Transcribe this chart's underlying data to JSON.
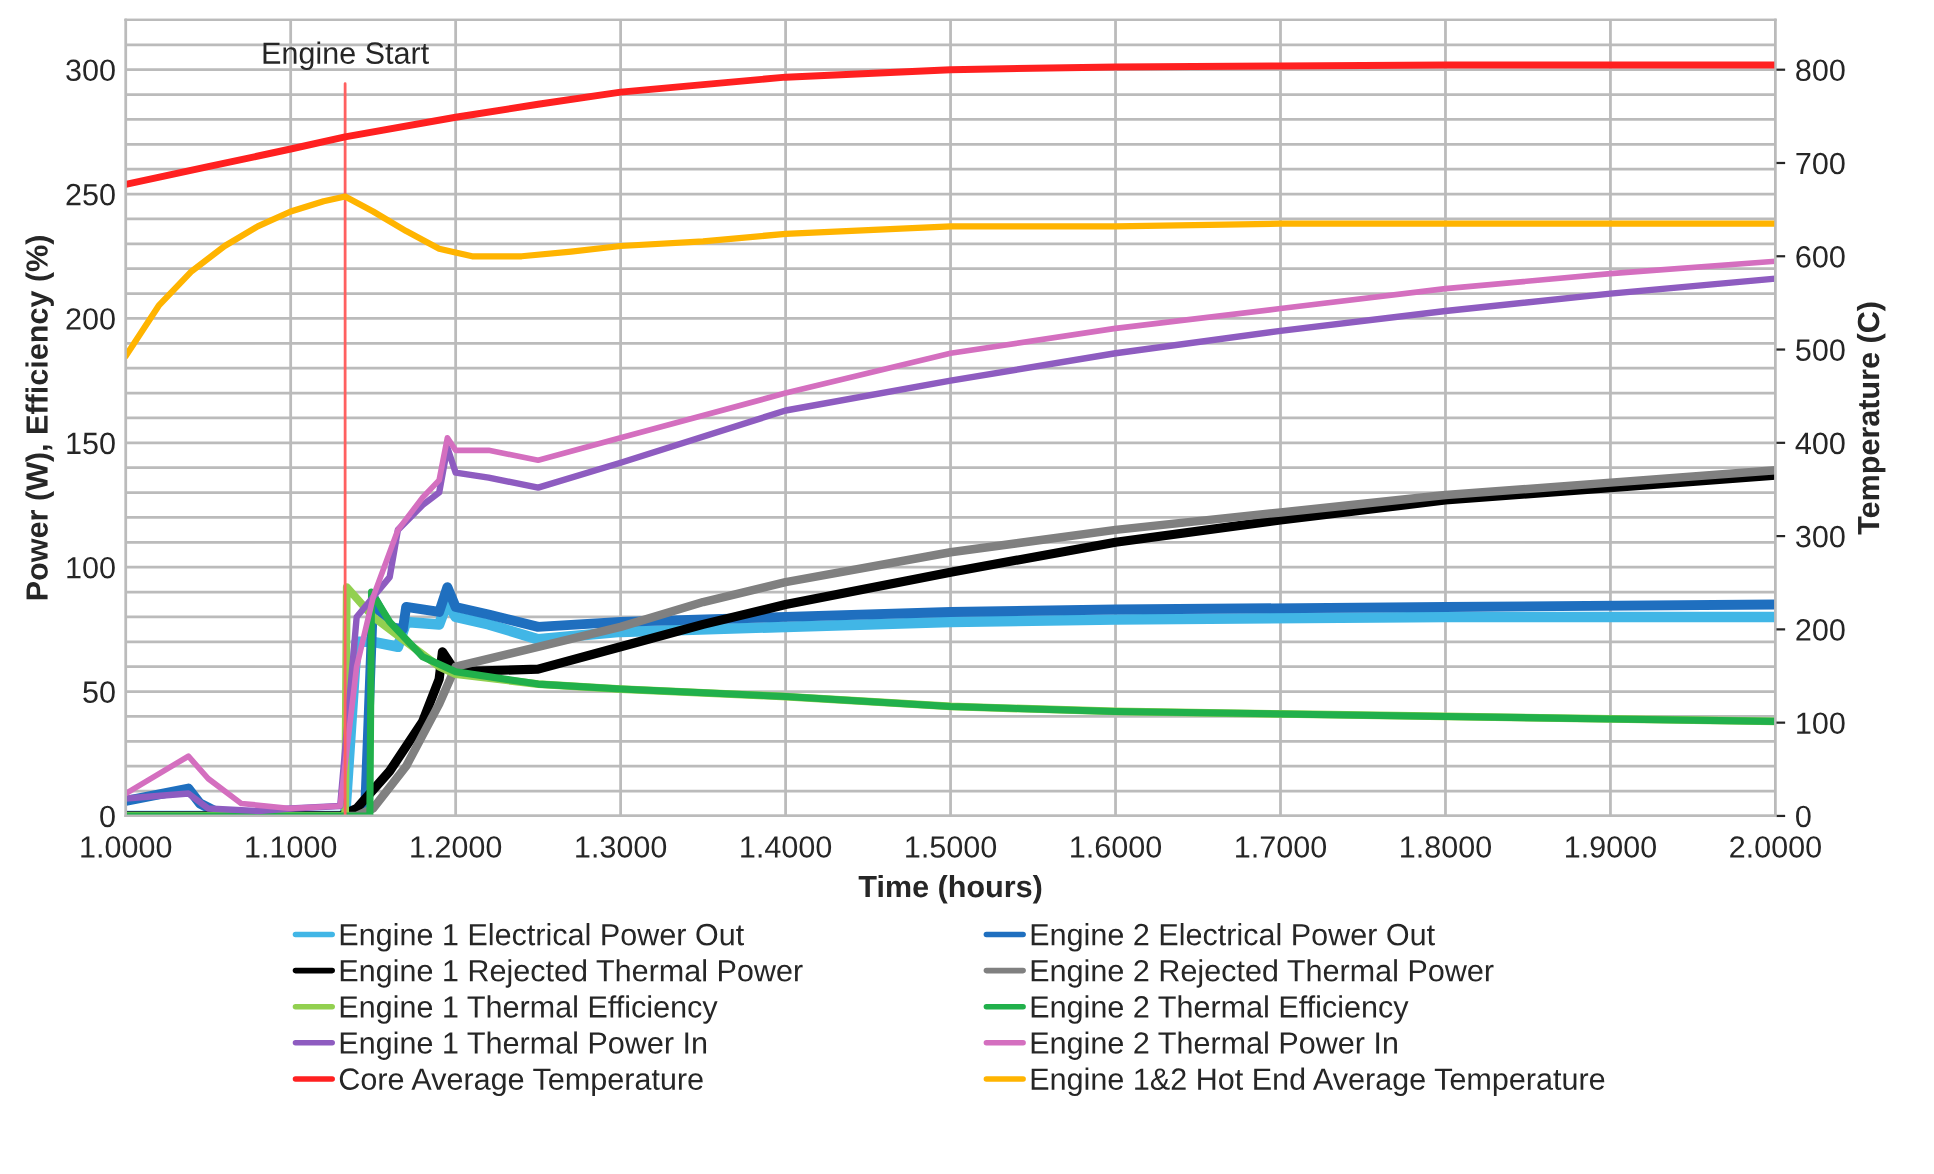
{
  "chart_data": {
    "type": "line",
    "xlabel": "Time (hours)",
    "ylabel": "Power (W), Efficiency (%)",
    "y2label": "Temperature (C)",
    "xlim": [
      1.0,
      2.0
    ],
    "xticks": [
      {
        "value": 1.0,
        "label": "1.0000"
      },
      {
        "value": 1.1,
        "label": "1.1000"
      },
      {
        "value": 1.2,
        "label": "1.2000"
      },
      {
        "value": 1.3,
        "label": "1.3000"
      },
      {
        "value": 1.4,
        "label": "1.4000"
      },
      {
        "value": 1.5,
        "label": "1.5000"
      },
      {
        "value": 1.6,
        "label": "1.6000"
      },
      {
        "value": 1.7,
        "label": "1.7000"
      },
      {
        "value": 1.8,
        "label": "1.8000"
      },
      {
        "value": 1.9,
        "label": "1.9000"
      },
      {
        "value": 2.0,
        "label": "2.0000"
      }
    ],
    "ylim": [
      0,
      320
    ],
    "yticks": [
      0,
      {
        "value": 10,
        "label": null
      },
      {
        "value": 20,
        "label": null
      },
      {
        "value": 30,
        "label": null
      },
      {
        "value": 40,
        "label": null
      },
      50,
      {
        "value": 60,
        "label": null
      },
      {
        "value": 70,
        "label": null
      },
      {
        "value": 80,
        "label": null
      },
      {
        "value": 90,
        "label": null
      },
      100,
      {
        "value": 110,
        "label": null
      },
      {
        "value": 120,
        "label": null
      },
      {
        "value": 130,
        "label": null
      },
      {
        "value": 140,
        "label": null
      },
      150,
      {
        "value": 160,
        "label": null
      },
      {
        "value": 170,
        "label": null
      },
      {
        "value": 180,
        "label": null
      },
      {
        "value": 190,
        "label": null
      },
      200,
      {
        "value": 210,
        "label": null
      },
      {
        "value": 220,
        "label": null
      },
      {
        "value": 230,
        "label": null
      },
      {
        "value": 240,
        "label": null
      },
      250,
      {
        "value": 260,
        "label": null
      },
      {
        "value": 270,
        "label": null
      },
      {
        "value": 280,
        "label": null
      },
      {
        "value": 290,
        "label": null
      },
      300,
      {
        "value": 310,
        "label": null
      }
    ],
    "y2lim": [
      0,
      853.33
    ],
    "y2ticks": [
      0,
      100,
      200,
      300,
      400,
      500,
      600,
      700,
      800
    ],
    "grid": true,
    "legend": "bottom",
    "marker": "none",
    "line_style": "solid",
    "ref_lines": [
      {
        "axis": "x",
        "value": 1.133,
        "label": "Engine Start",
        "color": "#ff6060"
      }
    ],
    "series": [
      {
        "name": "Engine 1 Electrical Power Out",
        "color": "#41b6e6",
        "x": [
          1.0,
          1.133,
          1.14,
          1.15,
          1.165,
          1.17,
          1.19,
          1.195,
          1.2,
          1.22,
          1.25,
          1.3,
          1.4,
          1.5,
          1.6,
          1.8,
          2.0
        ],
        "values": [
          0,
          0,
          70,
          70,
          68,
          78,
          77,
          86,
          80,
          77,
          71,
          74,
          76,
          78,
          79,
          80,
          80
        ]
      },
      {
        "name": "Engine 2 Electrical Power Out",
        "color": "#1f6fbf",
        "x": [
          1.0,
          1.038,
          1.045,
          1.06,
          1.145,
          1.15,
          1.16,
          1.168,
          1.17,
          1.19,
          1.195,
          1.2,
          1.22,
          1.25,
          1.3,
          1.4,
          1.5,
          1.6,
          1.8,
          2.0
        ],
        "values": [
          6,
          11,
          5,
          0,
          0,
          88,
          76,
          75,
          84,
          82,
          92,
          84,
          81,
          76,
          78,
          80,
          82,
          83,
          84,
          85
        ]
      },
      {
        "name": "Engine 1 Rejected Thermal Power",
        "color": "#000000",
        "x": [
          1.0,
          1.13,
          1.14,
          1.16,
          1.18,
          1.19,
          1.192,
          1.2,
          1.25,
          1.3,
          1.35,
          1.4,
          1.5,
          1.6,
          1.7,
          1.8,
          1.9,
          2.0
        ],
        "values": [
          0,
          0,
          3,
          18,
          38,
          55,
          66,
          58,
          59,
          68,
          77,
          85,
          98,
          110,
          119,
          127,
          132,
          137
        ]
      },
      {
        "name": "Engine 2 Rejected Thermal Power",
        "color": "#808080",
        "x": [
          1.0,
          1.14,
          1.15,
          1.17,
          1.19,
          1.2,
          1.25,
          1.3,
          1.35,
          1.4,
          1.5,
          1.6,
          1.7,
          1.8,
          1.9,
          2.0
        ],
        "values": [
          0,
          0,
          3,
          20,
          45,
          60,
          68,
          76,
          86,
          94,
          106,
          115,
          122,
          129,
          134,
          139
        ]
      },
      {
        "name": "Engine 1 Thermal Efficiency",
        "color": "#92d050",
        "x": [
          1.0,
          1.133,
          1.134,
          1.15,
          1.17,
          1.19,
          1.2,
          1.25,
          1.3,
          1.4,
          1.5,
          1.6,
          1.7,
          1.8,
          1.9,
          2.0
        ],
        "values": [
          0,
          0,
          92,
          80,
          70,
          60,
          57,
          53,
          51,
          48,
          44,
          42,
          41,
          40,
          39,
          38
        ]
      },
      {
        "name": "Engine 2 Thermal Efficiency",
        "color": "#21b04b",
        "x": [
          1.0,
          1.148,
          1.149,
          1.16,
          1.18,
          1.2,
          1.25,
          1.3,
          1.4,
          1.5,
          1.6,
          1.7,
          1.8,
          1.9,
          2.0
        ],
        "values": [
          0,
          0,
          90,
          78,
          64,
          58,
          53,
          51,
          48,
          44,
          42,
          41,
          40,
          39,
          38
        ]
      },
      {
        "name": "Engine 1 Thermal Power In",
        "color": "#8e5cc0",
        "x": [
          1.0,
          1.038,
          1.05,
          1.08,
          1.1,
          1.13,
          1.14,
          1.15,
          1.16,
          1.165,
          1.18,
          1.19,
          1.195,
          1.2,
          1.22,
          1.25,
          1.3,
          1.4,
          1.5,
          1.6,
          1.7,
          1.8,
          1.9,
          2.0
        ],
        "values": [
          7,
          9,
          3,
          2,
          3,
          4,
          80,
          88,
          96,
          115,
          125,
          130,
          148,
          138,
          136,
          132,
          142,
          163,
          175,
          186,
          195,
          203,
          210,
          216
        ]
      },
      {
        "name": "Engine 2 Thermal Power In",
        "color": "#d46fbf",
        "x": [
          1.0,
          1.038,
          1.05,
          1.07,
          1.1,
          1.13,
          1.14,
          1.15,
          1.165,
          1.18,
          1.19,
          1.195,
          1.2,
          1.22,
          1.25,
          1.3,
          1.4,
          1.5,
          1.6,
          1.7,
          1.8,
          1.9,
          2.0
        ],
        "values": [
          9,
          24,
          15,
          5,
          3,
          4,
          60,
          88,
          115,
          128,
          135,
          152,
          147,
          147,
          143,
          152,
          170,
          186,
          196,
          204,
          212,
          218,
          223
        ]
      },
      {
        "name": "Core Average Temperature",
        "color": "#ff2020",
        "axis": "y2",
        "x": [
          1.0,
          1.05,
          1.1,
          1.133,
          1.2,
          1.25,
          1.3,
          1.35,
          1.4,
          1.5,
          1.6,
          1.7,
          1.8,
          1.9,
          2.0
        ],
        "values": [
          677,
          696,
          715,
          728,
          749,
          763,
          776,
          784,
          792,
          800,
          803,
          804,
          805,
          805,
          805
        ]
      },
      {
        "name": "Engine 1&2 Hot End Average Temperature",
        "color": "#ffb400",
        "axis": "y2",
        "x": [
          1.0,
          1.02,
          1.04,
          1.06,
          1.08,
          1.1,
          1.12,
          1.133,
          1.15,
          1.17,
          1.19,
          1.21,
          1.24,
          1.27,
          1.3,
          1.35,
          1.4,
          1.5,
          1.6,
          1.7,
          2.0
        ],
        "values": [
          493,
          547,
          584,
          611,
          632,
          648,
          659,
          664,
          648,
          627,
          608,
          600,
          600,
          605,
          611,
          616,
          624,
          632,
          632,
          635,
          635
        ]
      }
    ]
  }
}
